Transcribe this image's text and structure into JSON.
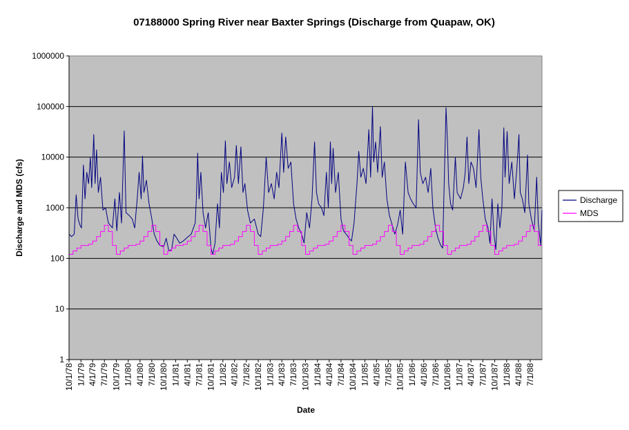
{
  "chart_data": {
    "type": "line",
    "title": "07188000 Spring River near Baxter Springs (Discharge from Quapaw, OK)",
    "xlabel": "Date",
    "ylabel": "Discharge and MDS (cfs)",
    "yscale": "log",
    "ylim": [
      1,
      1000000
    ],
    "y_ticks": [
      "1",
      "10",
      "100",
      "1000",
      "10000",
      "100000",
      "1000000"
    ],
    "x_range": [
      "1978-10-01",
      "1988-09-30"
    ],
    "x_ticks": [
      "10/1/78",
      "1/1/79",
      "4/1/79",
      "7/1/79",
      "10/1/79",
      "1/1/80",
      "4/1/80",
      "7/1/80",
      "10/1/80",
      "1/1/81",
      "4/1/81",
      "7/1/81",
      "10/1/81",
      "1/1/82",
      "4/1/82",
      "7/1/82",
      "10/1/82",
      "1/1/83",
      "4/1/83",
      "7/1/83",
      "10/1/83",
      "1/1/84",
      "4/1/84",
      "7/1/84",
      "10/1/84",
      "1/1/85",
      "4/1/85",
      "7/1/85",
      "10/1/85",
      "1/1/86",
      "4/1/86",
      "7/1/86",
      "10/1/86",
      "1/1/87",
      "4/1/87",
      "7/1/87",
      "10/1/87",
      "1/1/88",
      "4/1/88",
      "7/1/88"
    ],
    "plot_background": "#c0c0c0",
    "gridlines": "horizontal",
    "legend_position": "right",
    "series": [
      {
        "name": "Discharge",
        "color": "#000080",
        "points": [
          [
            "1978-10-01",
            300
          ],
          [
            "1978-10-20",
            270
          ],
          [
            "1978-11-10",
            300
          ],
          [
            "1978-11-25",
            1800
          ],
          [
            "1978-12-10",
            600
          ],
          [
            "1978-12-25",
            450
          ],
          [
            "1979-01-05",
            400
          ],
          [
            "1979-01-20",
            7000
          ],
          [
            "1979-02-01",
            1500
          ],
          [
            "1979-02-15",
            5000
          ],
          [
            "1979-03-01",
            3000
          ],
          [
            "1979-03-15",
            10000
          ],
          [
            "1979-03-25",
            2500
          ],
          [
            "1979-04-10",
            28000
          ],
          [
            "1979-04-20",
            3000
          ],
          [
            "1979-05-01",
            14000
          ],
          [
            "1979-05-15",
            2000
          ],
          [
            "1979-06-01",
            4000
          ],
          [
            "1979-06-20",
            900
          ],
          [
            "1979-07-10",
            1000
          ],
          [
            "1979-08-01",
            500
          ],
          [
            "1979-09-01",
            400
          ],
          [
            "1979-09-20",
            1500
          ],
          [
            "1979-10-05",
            350
          ],
          [
            "1979-10-25",
            2000
          ],
          [
            "1979-11-10",
            500
          ],
          [
            "1979-12-01",
            33000
          ],
          [
            "1979-12-15",
            800
          ],
          [
            "1980-01-10",
            700
          ],
          [
            "1980-02-01",
            600
          ],
          [
            "1980-02-20",
            400
          ],
          [
            "1980-03-10",
            1500
          ],
          [
            "1980-03-25",
            5000
          ],
          [
            "1980-04-10",
            1500
          ],
          [
            "1980-04-20",
            10500
          ],
          [
            "1980-05-01",
            2000
          ],
          [
            "1980-05-20",
            3500
          ],
          [
            "1980-06-10",
            1200
          ],
          [
            "1980-07-01",
            600
          ],
          [
            "1980-07-20",
            300
          ],
          [
            "1980-08-10",
            220
          ],
          [
            "1980-09-01",
            180
          ],
          [
            "1980-10-01",
            170
          ],
          [
            "1980-10-20",
            250
          ],
          [
            "1980-11-10",
            140
          ],
          [
            "1980-12-01",
            150
          ],
          [
            "1980-12-20",
            300
          ],
          [
            "1981-01-10",
            250
          ],
          [
            "1981-02-01",
            200
          ],
          [
            "1981-03-01",
            220
          ],
          [
            "1981-04-01",
            260
          ],
          [
            "1981-05-01",
            300
          ],
          [
            "1981-06-01",
            500
          ],
          [
            "1981-06-10",
            1500
          ],
          [
            "1981-06-20",
            12000
          ],
          [
            "1981-07-01",
            1500
          ],
          [
            "1981-07-15",
            5000
          ],
          [
            "1981-08-01",
            800
          ],
          [
            "1981-08-20",
            400
          ],
          [
            "1981-09-10",
            800
          ],
          [
            "1981-10-01",
            160
          ],
          [
            "1981-10-15",
            120
          ],
          [
            "1981-11-01",
            200
          ],
          [
            "1981-11-20",
            1200
          ],
          [
            "1981-12-05",
            400
          ],
          [
            "1981-12-20",
            5000
          ],
          [
            "1982-01-05",
            2000
          ],
          [
            "1982-01-20",
            21000
          ],
          [
            "1982-02-01",
            3000
          ],
          [
            "1982-02-20",
            8000
          ],
          [
            "1982-03-10",
            2500
          ],
          [
            "1982-04-01",
            4000
          ],
          [
            "1982-04-15",
            17000
          ],
          [
            "1982-05-01",
            3000
          ],
          [
            "1982-05-20",
            16000
          ],
          [
            "1982-06-05",
            2000
          ],
          [
            "1982-06-20",
            3000
          ],
          [
            "1982-07-10",
            900
          ],
          [
            "1982-08-01",
            500
          ],
          [
            "1982-09-01",
            600
          ],
          [
            "1982-10-01",
            300
          ],
          [
            "1982-10-20",
            270
          ],
          [
            "1982-11-10",
            1000
          ],
          [
            "1982-12-01",
            10000
          ],
          [
            "1982-12-20",
            2000
          ],
          [
            "1983-01-10",
            3000
          ],
          [
            "1983-02-01",
            1500
          ],
          [
            "1983-02-20",
            5000
          ],
          [
            "1983-03-10",
            2500
          ],
          [
            "1983-04-01",
            30000
          ],
          [
            "1983-04-15",
            5000
          ],
          [
            "1983-05-01",
            25000
          ],
          [
            "1983-05-20",
            6000
          ],
          [
            "1983-06-10",
            8000
          ],
          [
            "1983-07-01",
            1200
          ],
          [
            "1983-07-20",
            600
          ],
          [
            "1983-08-10",
            400
          ],
          [
            "1983-09-01",
            300
          ],
          [
            "1983-09-20",
            200
          ],
          [
            "1983-10-10",
            800
          ],
          [
            "1983-11-01",
            400
          ],
          [
            "1983-11-20",
            1500
          ],
          [
            "1983-12-10",
            20000
          ],
          [
            "1983-12-25",
            2000
          ],
          [
            "1984-01-10",
            1200
          ],
          [
            "1984-02-01",
            1000
          ],
          [
            "1984-02-20",
            700
          ],
          [
            "1984-03-10",
            5000
          ],
          [
            "1984-03-25",
            1000
          ],
          [
            "1984-04-10",
            20000
          ],
          [
            "1984-04-20",
            3000
          ],
          [
            "1984-05-01",
            15000
          ],
          [
            "1984-05-20",
            2000
          ],
          [
            "1984-06-10",
            5000
          ],
          [
            "1984-07-01",
            600
          ],
          [
            "1984-07-20",
            350
          ],
          [
            "1984-08-10",
            300
          ],
          [
            "1984-09-01",
            250
          ],
          [
            "1984-09-20",
            220
          ],
          [
            "1984-10-10",
            500
          ],
          [
            "1984-11-01",
            3000
          ],
          [
            "1984-11-15",
            13000
          ],
          [
            "1984-12-01",
            4000
          ],
          [
            "1984-12-20",
            6000
          ],
          [
            "1985-01-10",
            3000
          ],
          [
            "1985-02-01",
            35000
          ],
          [
            "1985-02-15",
            4000
          ],
          [
            "1985-03-01",
            100000
          ],
          [
            "1985-03-10",
            8000
          ],
          [
            "1985-03-25",
            20000
          ],
          [
            "1985-04-10",
            5000
          ],
          [
            "1985-05-01",
            40000
          ],
          [
            "1985-05-15",
            4000
          ],
          [
            "1985-06-01",
            8000
          ],
          [
            "1985-06-20",
            1500
          ],
          [
            "1985-07-10",
            700
          ],
          [
            "1985-08-01",
            450
          ],
          [
            "1985-08-20",
            300
          ],
          [
            "1985-09-10",
            450
          ],
          [
            "1985-10-01",
            900
          ],
          [
            "1985-10-20",
            300
          ],
          [
            "1985-11-10",
            8000
          ],
          [
            "1985-12-01",
            2000
          ],
          [
            "1985-12-20",
            1500
          ],
          [
            "1986-01-10",
            1200
          ],
          [
            "1986-02-01",
            1000
          ],
          [
            "1986-02-20",
            55000
          ],
          [
            "1986-03-05",
            5000
          ],
          [
            "1986-03-25",
            3000
          ],
          [
            "1986-04-15",
            4000
          ],
          [
            "1986-05-05",
            2000
          ],
          [
            "1986-05-25",
            6000
          ],
          [
            "1986-06-10",
            1000
          ],
          [
            "1986-07-01",
            400
          ],
          [
            "1986-07-20",
            250
          ],
          [
            "1986-08-10",
            180
          ],
          [
            "1986-08-25",
            160
          ],
          [
            "1986-09-10",
            8000
          ],
          [
            "1986-09-20",
            95000
          ],
          [
            "1986-10-01",
            20000
          ],
          [
            "1986-10-10",
            3000
          ],
          [
            "1986-10-25",
            1200
          ],
          [
            "1986-11-10",
            900
          ],
          [
            "1986-12-01",
            10000
          ],
          [
            "1986-12-15",
            2000
          ],
          [
            "1987-01-10",
            1500
          ],
          [
            "1987-02-01",
            2500
          ],
          [
            "1987-02-15",
            5000
          ],
          [
            "1987-03-01",
            25000
          ],
          [
            "1987-03-15",
            3000
          ],
          [
            "1987-04-01",
            8000
          ],
          [
            "1987-04-20",
            6000
          ],
          [
            "1987-05-10",
            2500
          ],
          [
            "1987-06-01",
            35000
          ],
          [
            "1987-06-15",
            4000
          ],
          [
            "1987-07-01",
            1500
          ],
          [
            "1987-07-20",
            600
          ],
          [
            "1987-08-10",
            400
          ],
          [
            "1987-08-25",
            200
          ],
          [
            "1987-09-10",
            1500
          ],
          [
            "1987-09-25",
            300
          ],
          [
            "1987-10-10",
            150
          ],
          [
            "1987-10-25",
            1200
          ],
          [
            "1987-11-10",
            400
          ],
          [
            "1987-11-25",
            1000
          ],
          [
            "1987-12-10",
            38000
          ],
          [
            "1987-12-20",
            4000
          ],
          [
            "1988-01-05",
            32000
          ],
          [
            "1988-01-20",
            3000
          ],
          [
            "1988-02-10",
            8000
          ],
          [
            "1988-03-01",
            1500
          ],
          [
            "1988-03-20",
            6000
          ],
          [
            "1988-04-05",
            28000
          ],
          [
            "1988-04-15",
            2000
          ],
          [
            "1988-05-01",
            1500
          ],
          [
            "1988-05-20",
            800
          ],
          [
            "1988-06-10",
            11000
          ],
          [
            "1988-06-20",
            1200
          ],
          [
            "1988-07-10",
            600
          ],
          [
            "1988-08-01",
            350
          ],
          [
            "1988-08-20",
            4000
          ],
          [
            "1988-09-01",
            500
          ],
          [
            "1988-09-20",
            180
          ],
          [
            "1988-09-30",
            900
          ]
        ]
      },
      {
        "name": "MDS",
        "color": "#ff00ff",
        "monthly_values": [
          120,
          140,
          160,
          180,
          180,
          190,
          220,
          270,
          340,
          450,
          340,
          180
        ],
        "monthly_values_start_month": "October"
      }
    ]
  }
}
